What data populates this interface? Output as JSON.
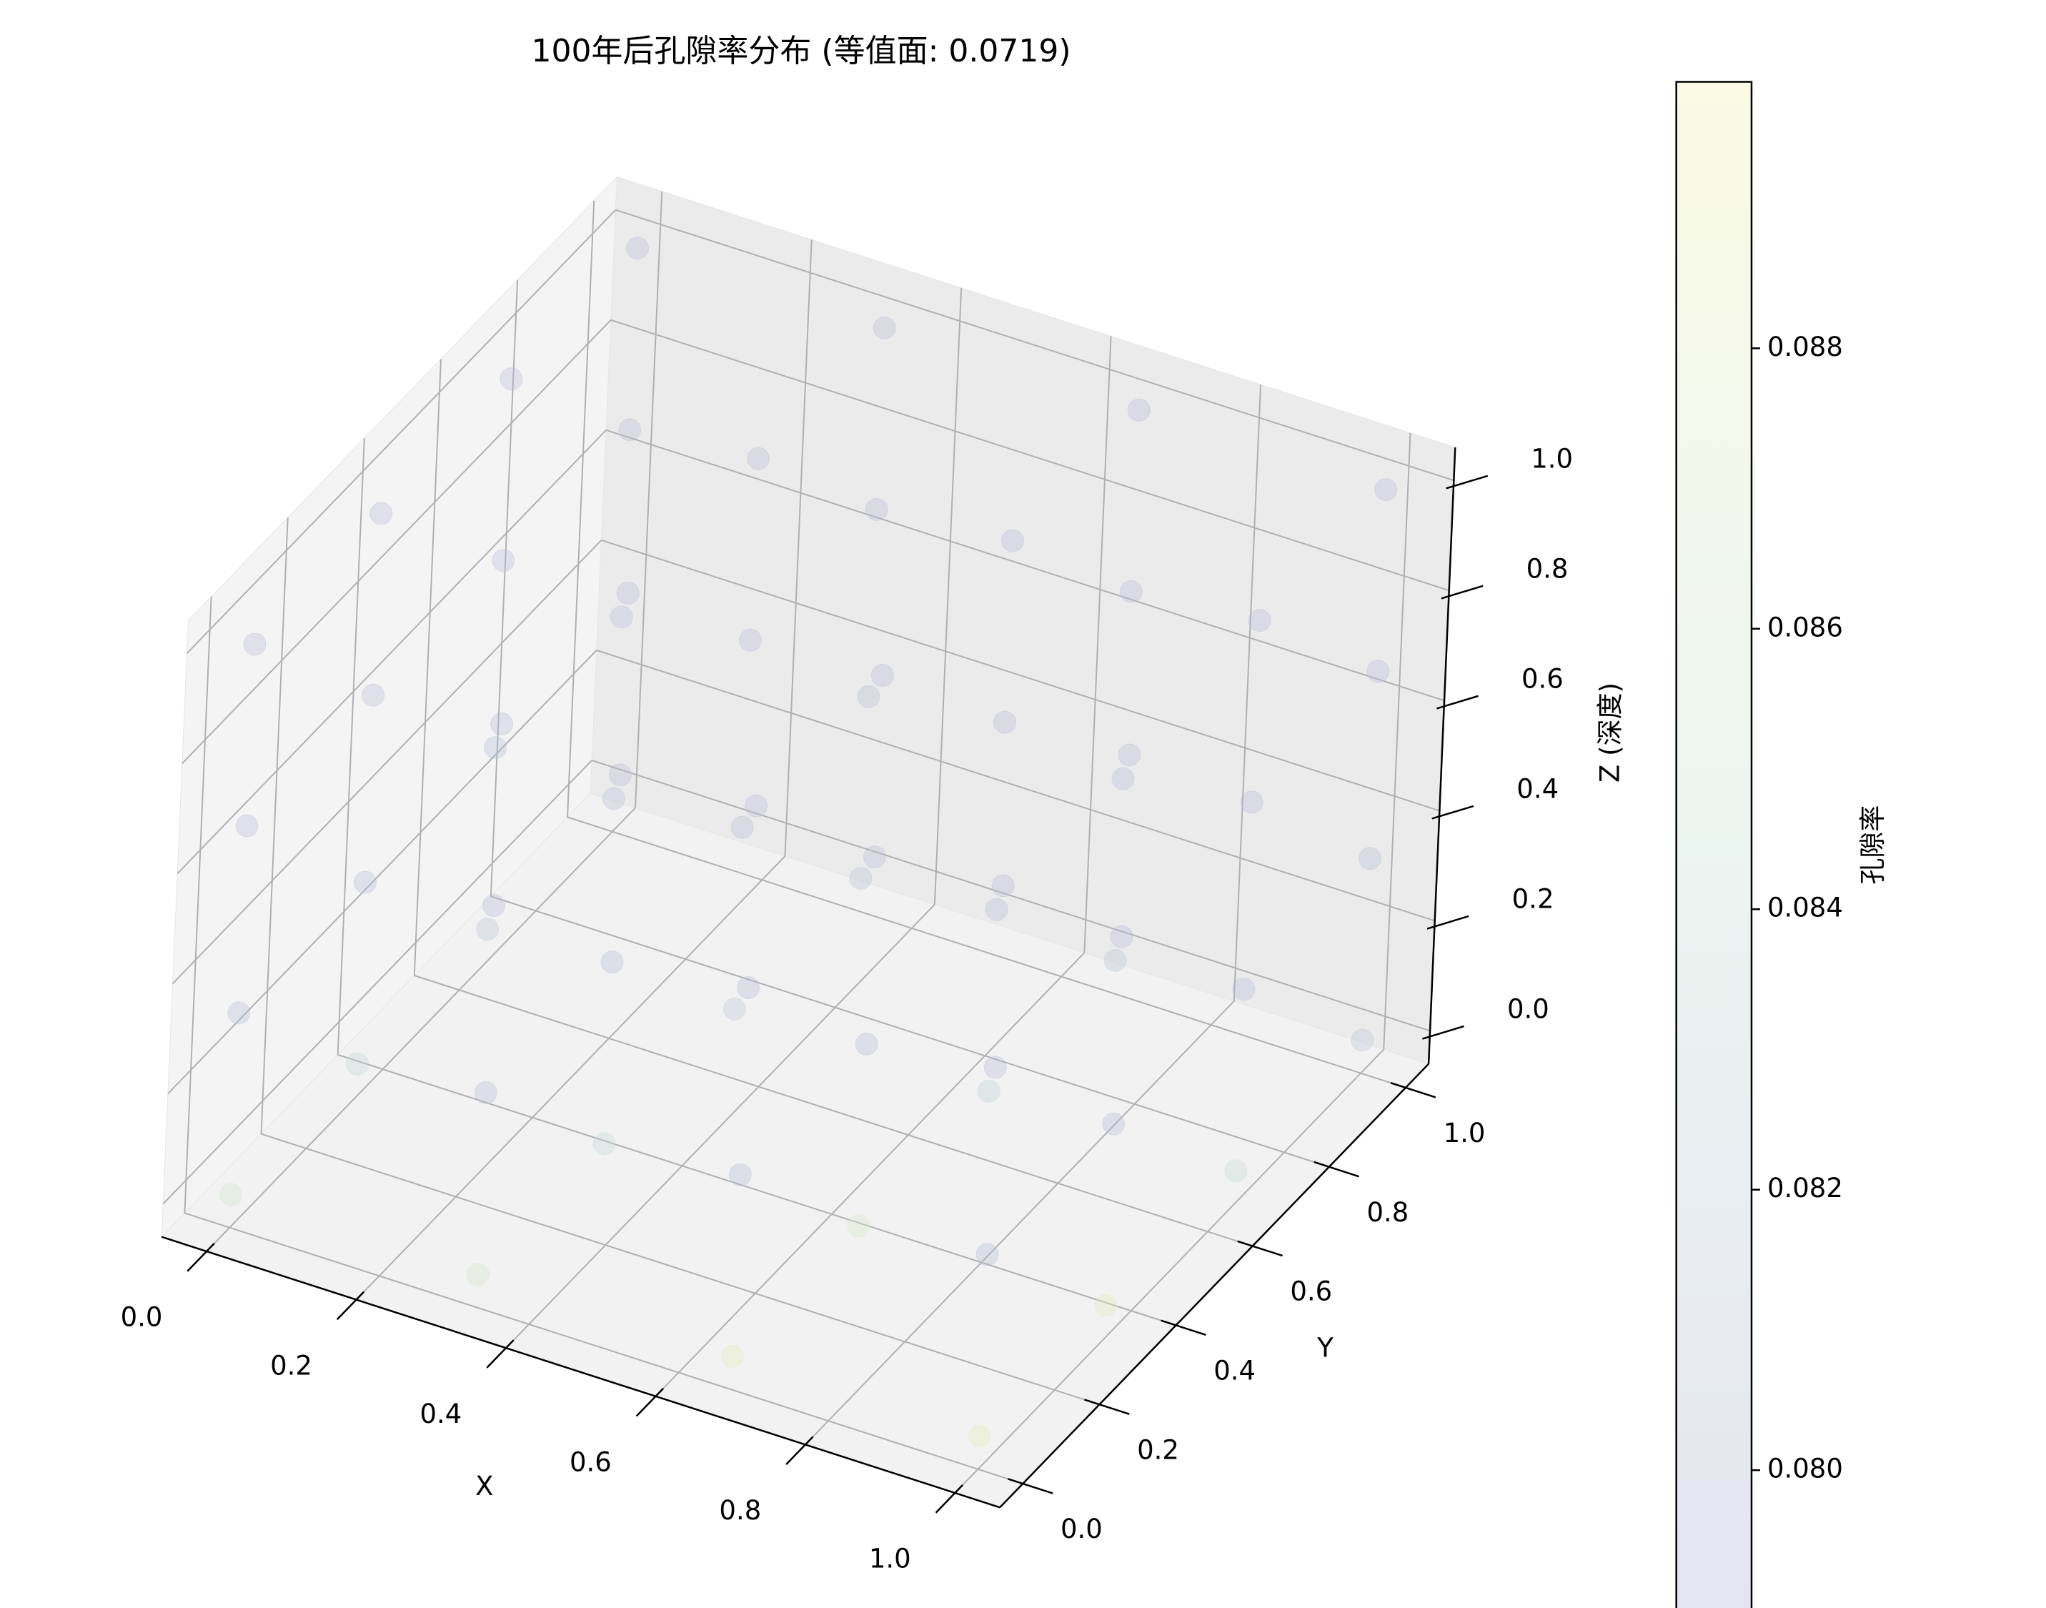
{
  "chart_data": {
    "type": "scatter3d",
    "title": "100年后孔隙率分布 (等值面: 0.0719)",
    "xlabel": "X",
    "ylabel": "Y",
    "zlabel": "Z (深度)",
    "xlim": [
      -0.06,
      1.06
    ],
    "ylim": [
      -0.06,
      1.06
    ],
    "zlim": [
      -0.06,
      1.06
    ],
    "xticks": [
      {
        "value": 0,
        "label": "0.0"
      },
      0.2,
      0.4,
      0.6,
      0.8,
      {
        "value": 1,
        "label": "1.0"
      }
    ],
    "yticks": [
      {
        "value": 0,
        "label": "0.0"
      },
      0.2,
      0.4,
      0.6,
      0.8,
      {
        "value": 1,
        "label": "1.0"
      }
    ],
    "zticks": [
      {
        "value": 0,
        "label": "0.0"
      },
      0.2,
      0.4,
      0.6,
      0.8,
      {
        "value": 1,
        "label": "1.0"
      }
    ],
    "grid": true,
    "colormap": [
      "#b4b4d6",
      "#c6e2d6",
      "#f0f0b4"
    ],
    "alpha": 0.35,
    "x": [
      0,
      0.33,
      0.67,
      1,
      0,
      0.33,
      0.67,
      1,
      0,
      0.33,
      0.67,
      1,
      0,
      0.33,
      0.67,
      1,
      0,
      0.33,
      0.67,
      1,
      0,
      0.33,
      0.67,
      1,
      0,
      0.33,
      0.67,
      1,
      0,
      0.33,
      0.67,
      1,
      0,
      0.33,
      0.67,
      1,
      0,
      0.33,
      0.67,
      1,
      0,
      0.33,
      0.67,
      1,
      0,
      0.33,
      0.67,
      1,
      0,
      0.33,
      0.67,
      1,
      0,
      0.33,
      0.67,
      1,
      0,
      0.33,
      0.67,
      1,
      0,
      0.33,
      0.67,
      1
    ],
    "y": [
      0,
      0,
      0,
      0,
      0.33,
      0.33,
      0.33,
      0.33,
      0.67,
      0.67,
      0.67,
      0.67,
      1,
      1,
      1,
      1,
      0,
      0,
      0,
      0,
      0.33,
      0.33,
      0.33,
      0.33,
      0.67,
      0.67,
      0.67,
      0.67,
      1,
      1,
      1,
      1,
      0,
      0,
      0,
      0,
      0.33,
      0.33,
      0.33,
      0.33,
      0.67,
      0.67,
      0.67,
      0.67,
      1,
      1,
      1,
      1,
      0,
      0,
      0,
      0,
      0.33,
      0.33,
      0.33,
      0.33,
      0.67,
      0.67,
      0.67,
      0.67,
      1,
      1,
      1,
      1
    ],
    "z": [
      0,
      0,
      0,
      0,
      0,
      0,
      0,
      0,
      0,
      0,
      0,
      0,
      0,
      0,
      0,
      0,
      0.33,
      0.33,
      0.33,
      0.33,
      0.33,
      0.33,
      0.33,
      0.33,
      0.33,
      0.33,
      0.33,
      0.33,
      0.33,
      0.33,
      0.33,
      0.33,
      0.67,
      0.67,
      0.67,
      0.67,
      0.67,
      0.67,
      0.67,
      0.67,
      0.67,
      0.67,
      0.67,
      0.67,
      0.67,
      0.67,
      0.67,
      0.67,
      1,
      1,
      1,
      1,
      1,
      1,
      1,
      1,
      1,
      1,
      1,
      1,
      1,
      1,
      1,
      1
    ],
    "values": [
      0.0855,
      0.0862,
      0.0885,
      0.089,
      0.083,
      0.0838,
      0.087,
      0.088,
      0.0812,
      0.0815,
      0.0825,
      0.084,
      0.0803,
      0.0805,
      0.0808,
      0.0815,
      0.0801,
      0.0801,
      0.0801,
      0.0801,
      0.0799,
      0.0799,
      0.0799,
      0.0799,
      0.0799,
      0.0799,
      0.0799,
      0.0799,
      0.0799,
      0.0799,
      0.0799,
      0.0799,
      0.0798,
      0.0798,
      0.0798,
      0.0798,
      0.0798,
      0.0798,
      0.0798,
      0.0798,
      0.0798,
      0.0798,
      0.0798,
      0.0798,
      0.0798,
      0.0798,
      0.0798,
      0.0798,
      0.0798,
      0.0798,
      0.0798,
      0.0798,
      0.0798,
      0.0798,
      0.0798,
      0.0798,
      0.0798,
      0.0798,
      0.0798,
      0.0798,
      0.0798,
      0.0798,
      0.0798,
      0.0798
    ],
    "colorbar": {
      "label": "孔隙率",
      "clim": [
        0.079,
        0.0899
      ],
      "ticks": [
        {
          "value": 0.08,
          "label": "0.080"
        },
        0.082,
        0.084,
        0.086,
        0.088
      ]
    }
  }
}
